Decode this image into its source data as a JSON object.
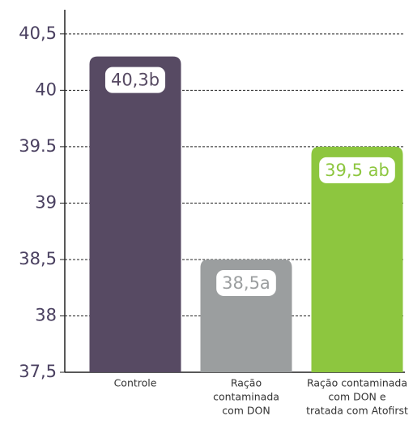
{
  "chart_data": {
    "type": "bar",
    "categories": [
      [
        "Controle"
      ],
      [
        "Ração",
        "contaminada",
        "com DON"
      ],
      [
        "Ração contaminada",
        "com DON e",
        "tratada com Atofirst"
      ]
    ],
    "values": [
      40.3,
      38.5,
      39.5
    ],
    "value_labels": [
      "40,3b",
      "38,5a",
      "39,5 ab"
    ],
    "colors": [
      "#574a63",
      "#9b9e9f",
      "#8dc63f"
    ],
    "ylim": [
      37.5,
      40.7
    ],
    "yticks": [
      {
        "value": 37.5,
        "label": "37,5"
      },
      38,
      {
        "value": 38.5,
        "label": "38,5"
      },
      39,
      39.5,
      40,
      {
        "value": 40.5,
        "label": "40,5"
      }
    ],
    "grid": true
  }
}
